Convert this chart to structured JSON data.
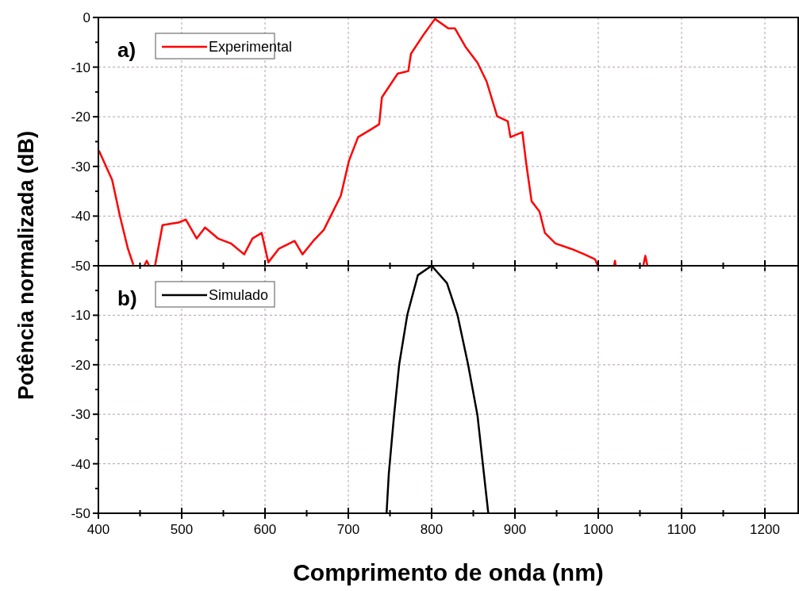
{
  "chart_data": [
    {
      "type": "line",
      "ylabel": "Potência normalizada (dB)",
      "annotations": [
        "a)"
      ],
      "legend": "top left",
      "grid": true,
      "tick_labels": "y",
      "xlim": [
        400,
        1240
      ],
      "xticks": [
        400,
        500,
        600,
        700,
        800,
        900,
        1000,
        1100,
        1200
      ],
      "ylim": [
        -50,
        0
      ],
      "yticks": [
        0,
        -10,
        -20,
        -30,
        -40,
        -50
      ],
      "series": [
        {
          "name": "Experimental",
          "color": "#ff0000",
          "x": [
            400.6,
            416.5,
            426,
            435.5,
            442,
            450,
            455,
            458,
            461,
            466,
            468,
            477,
            496,
            505,
            518,
            528,
            543.5,
            559,
            575,
            585,
            596,
            604,
            616.5,
            635.5,
            645,
            658,
            670.5,
            680,
            691,
            700.7,
            711.7,
            727.6,
            737,
            740.3,
            759.3,
            772,
            775.2,
            791,
            804,
            820,
            828,
            840.6,
            855,
            866,
            878.7,
            891.4,
            894.6,
            908.9,
            913.6,
            920,
            929.5,
            936,
            948.6,
            967.6,
            983.5,
            996.2,
            999.4,
            1010,
            1019,
            1020,
            1021,
            1040,
            1054,
            1056.5,
            1059
          ],
          "values": [
            -26.8,
            -32.7,
            -40.1,
            -46.6,
            -49.8,
            null,
            -50,
            -49,
            -50,
            null,
            -50,
            -41.8,
            -41.3,
            -40.7,
            -44.5,
            -42.3,
            -44.5,
            -45.5,
            -47.7,
            -44.5,
            -43.4,
            -49.3,
            -46.6,
            -45,
            -47.7,
            -45,
            -42.8,
            -39.6,
            -35.9,
            -28.9,
            -24.1,
            -22.5,
            -21.5,
            -16.1,
            -11.3,
            -10.8,
            -7.3,
            -3.3,
            -0.3,
            -2.2,
            -2.2,
            -5.9,
            -9.1,
            -12.9,
            -19.9,
            -20.9,
            -24.1,
            -23.1,
            -29.5,
            -37,
            -39.1,
            -43.4,
            -45.5,
            -46.6,
            -47.7,
            -48.7,
            -50,
            null,
            -50,
            -49,
            -50,
            null,
            -50,
            -48,
            -50
          ]
        }
      ]
    },
    {
      "type": "line",
      "xlabel": "Comprimento de onda (nm)",
      "annotations": [
        "b)"
      ],
      "legend": "top left",
      "grid": true,
      "xlim": [
        400,
        1240
      ],
      "xticks": [
        400,
        500,
        600,
        700,
        800,
        900,
        1000,
        1100,
        1200
      ],
      "ylim": [
        -50,
        0
      ],
      "yticks": [
        {
          "value": 0,
          "label": null
        },
        -10,
        -20,
        -30,
        -40,
        -50
      ],
      "series": [
        {
          "name": "Simulado",
          "color": "#000000",
          "x": [
            745.9,
            748.6,
            754.9,
            761,
            770.8,
            783.5,
            800,
            818.4,
            831,
            843.8,
            855,
            861.3,
            868
          ],
          "values": [
            -50,
            -42,
            -30.2,
            -20,
            -9.9,
            -1.9,
            0,
            -3.5,
            -9.9,
            -20,
            -30.2,
            -39.8,
            -50
          ]
        }
      ]
    }
  ]
}
